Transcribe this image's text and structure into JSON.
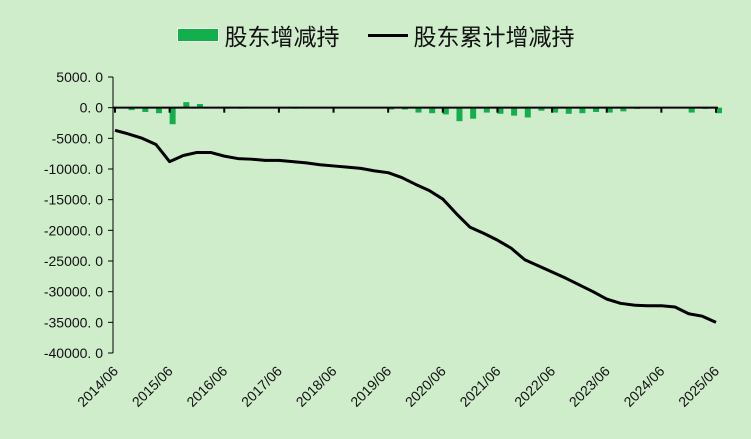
{
  "legend": {
    "bar_label": "股东增减持",
    "line_label": "股东累计增减持"
  },
  "colors": {
    "background": "#cfeccb",
    "bar": "#12b04c",
    "line": "#000000",
    "axis": "#000000"
  },
  "chart_data": {
    "type": "bar+line",
    "title": "",
    "xlabel": "",
    "ylabel": "",
    "ylim": [
      -40000,
      5000
    ],
    "y_ticks": [
      5000,
      0,
      -5000,
      -10000,
      -15000,
      -20000,
      -25000,
      -30000,
      -35000,
      -40000
    ],
    "y_tick_labels": [
      "5000. 0",
      "0. 0",
      "-5000. 0",
      "-10000. 0",
      "-15000. 0",
      "-20000. 0",
      "-25000. 0",
      "-30000. 0",
      "-35000. 0",
      "-40000. 0"
    ],
    "x_tick_labels": [
      "2014/06",
      "2015/06",
      "2016/06",
      "2017/06",
      "2018/06",
      "2019/06",
      "2020/06",
      "2021/06",
      "2022/06",
      "2023/06",
      "2024/06",
      "2025/06"
    ],
    "grid": false,
    "legend_position": "top",
    "x": [
      "2014/06",
      "2014/09",
      "2014/12",
      "2015/03",
      "2015/06",
      "2015/09",
      "2015/12",
      "2016/03",
      "2016/06",
      "2016/09",
      "2016/12",
      "2017/03",
      "2017/06",
      "2017/09",
      "2017/12",
      "2018/03",
      "2018/06",
      "2018/09",
      "2018/12",
      "2019/03",
      "2019/06",
      "2019/09",
      "2019/12",
      "2020/03",
      "2020/06",
      "2020/09",
      "2020/12",
      "2021/03",
      "2021/06",
      "2021/09",
      "2021/12",
      "2022/03",
      "2022/06",
      "2022/09",
      "2022/12",
      "2023/03",
      "2023/06",
      "2023/09",
      "2023/12",
      "2024/03",
      "2024/06",
      "2024/09",
      "2024/12",
      "2025/03",
      "2025/06"
    ],
    "series": [
      {
        "name": "股东增减持",
        "type": "bar",
        "values": [
          0,
          -400,
          -700,
          -900,
          -2700,
          900,
          600,
          0,
          -100,
          -100,
          0,
          0,
          0,
          -50,
          0,
          0,
          0,
          0,
          0,
          0,
          -300,
          -300,
          -800,
          -900,
          -1100,
          -2200,
          -1800,
          -800,
          -1000,
          -1300,
          -1600,
          -500,
          -800,
          -1000,
          -900,
          -700,
          -800,
          -600,
          -200,
          0,
          0,
          0,
          -800,
          -200,
          -900
        ]
      },
      {
        "name": "股东累计增减持",
        "type": "line",
        "values": [
          -3700,
          -4300,
          -5000,
          -6000,
          -8800,
          -7800,
          -7300,
          -7300,
          -7900,
          -8300,
          -8400,
          -8600,
          -8600,
          -8800,
          -9000,
          -9300,
          -9500,
          -9700,
          -9900,
          -10300,
          -10600,
          -11400,
          -12500,
          -13500,
          -14900,
          -17300,
          -19500,
          -20500,
          -21600,
          -22900,
          -24800,
          -25800,
          -26800,
          -27800,
          -28900,
          -30000,
          -31200,
          -31900,
          -32200,
          -32300,
          -32300,
          -32500,
          -33600,
          -34000,
          -35000
        ]
      }
    ]
  }
}
